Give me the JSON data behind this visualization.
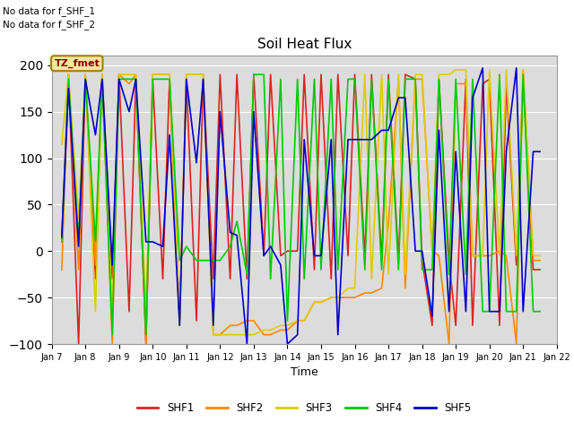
{
  "title": "Soil Heat Flux",
  "ylabel": "Soil Heat Flux",
  "xlabel": "Time",
  "ylim": [
    -100,
    210
  ],
  "yticks": [
    -100,
    -50,
    0,
    50,
    100,
    150,
    200
  ],
  "background_color": "#dcdcdc",
  "note1": "No data for f_SHF_1",
  "note2": "No data for f_SHF_2",
  "tz_label": "TZ_fmet",
  "series": {
    "SHF1": {
      "color": "#dd2222",
      "x": [
        7.3,
        7.5,
        7.8,
        8.0,
        8.3,
        8.5,
        8.8,
        9.0,
        9.3,
        9.5,
        9.8,
        10.0,
        10.3,
        10.5,
        10.8,
        11.0,
        11.3,
        11.5,
        11.8,
        12.0,
        12.3,
        12.5,
        12.8,
        13.0,
        13.3,
        13.5,
        13.8,
        14.0,
        14.3,
        14.5,
        14.8,
        15.0,
        15.3,
        15.5,
        15.8,
        16.0,
        16.3,
        16.5,
        16.8,
        17.0,
        17.3,
        17.5,
        17.8,
        18.0,
        18.3,
        18.5,
        18.8,
        19.0,
        19.3,
        19.5,
        19.8,
        20.0,
        20.3,
        20.5,
        20.8,
        21.0,
        21.3,
        21.5
      ],
      "y": [
        15,
        190,
        -100,
        190,
        -30,
        190,
        -30,
        190,
        -65,
        185,
        -100,
        185,
        -30,
        185,
        -75,
        185,
        -75,
        185,
        -30,
        190,
        -30,
        190,
        -30,
        190,
        -5,
        190,
        -5,
        0,
        0,
        190,
        -20,
        190,
        -30,
        190,
        -5,
        190,
        -5,
        190,
        -10,
        190,
        -10,
        190,
        185,
        -10,
        -80,
        185,
        -10,
        -80,
        185,
        -80,
        180,
        185,
        -80,
        180,
        -15,
        185,
        -20,
        -20
      ]
    },
    "SHF2": {
      "color": "#ff8800",
      "x": [
        7.3,
        7.5,
        7.8,
        8.0,
        8.3,
        8.5,
        8.8,
        9.0,
        9.3,
        9.5,
        9.8,
        10.0,
        10.3,
        10.5,
        10.8,
        11.0,
        11.3,
        11.5,
        11.8,
        12.0,
        12.3,
        12.5,
        12.8,
        13.0,
        13.3,
        13.5,
        13.8,
        14.0,
        14.3,
        14.5,
        14.8,
        15.0,
        15.3,
        15.5,
        15.8,
        16.0,
        16.3,
        16.5,
        16.8,
        17.0,
        17.3,
        17.5,
        17.8,
        18.0,
        18.3,
        18.5,
        18.8,
        19.0,
        19.3,
        19.5,
        19.8,
        20.0,
        20.3,
        20.5,
        20.8,
        21.0,
        21.3,
        21.5
      ],
      "y": [
        -20,
        190,
        -20,
        190,
        -15,
        190,
        -100,
        190,
        180,
        190,
        -100,
        190,
        190,
        190,
        -80,
        190,
        190,
        190,
        -90,
        -90,
        -80,
        -80,
        -75,
        -75,
        -90,
        -90,
        -85,
        -85,
        -75,
        -75,
        -55,
        -55,
        -50,
        -50,
        -50,
        -50,
        -45,
        -45,
        -40,
        30,
        185,
        -40,
        185,
        185,
        0,
        -5,
        -100,
        180,
        180,
        -5,
        -5,
        -5,
        0,
        -5,
        -100,
        195,
        -10,
        -10
      ]
    },
    "SHF3": {
      "color": "#ddcc00",
      "x": [
        7.3,
        7.5,
        7.8,
        8.0,
        8.3,
        8.5,
        8.8,
        9.0,
        9.3,
        9.5,
        9.8,
        10.0,
        10.3,
        10.5,
        10.8,
        11.0,
        11.3,
        11.5,
        11.8,
        12.0,
        12.3,
        12.5,
        12.8,
        13.0,
        13.3,
        13.5,
        13.8,
        14.0,
        14.3,
        14.5,
        14.8,
        15.0,
        15.3,
        15.5,
        15.8,
        16.0,
        16.3,
        16.5,
        16.8,
        17.0,
        17.3,
        17.5,
        17.8,
        18.0,
        18.3,
        18.5,
        18.8,
        19.0,
        19.3,
        19.5,
        19.8,
        20.0,
        20.3,
        20.5,
        20.8,
        21.0,
        21.3,
        21.5
      ],
      "y": [
        115,
        190,
        35,
        190,
        -65,
        190,
        -65,
        190,
        190,
        190,
        -65,
        190,
        190,
        190,
        -75,
        190,
        190,
        190,
        -90,
        -90,
        -90,
        -90,
        -90,
        -90,
        -85,
        -85,
        -80,
        -80,
        -75,
        -75,
        -55,
        -55,
        -50,
        -50,
        -40,
        -40,
        190,
        -30,
        190,
        -25,
        190,
        -25,
        190,
        190,
        0,
        190,
        190,
        195,
        195,
        -5,
        -5,
        195,
        -5,
        195,
        -5,
        195,
        -5,
        -5
      ]
    },
    "SHF4": {
      "color": "#00cc00",
      "x": [
        7.3,
        7.5,
        7.8,
        8.0,
        8.3,
        8.5,
        8.8,
        9.0,
        9.3,
        9.5,
        9.8,
        10.0,
        10.3,
        10.5,
        10.8,
        11.0,
        11.3,
        11.5,
        11.8,
        12.0,
        12.3,
        12.5,
        12.8,
        13.0,
        13.3,
        13.5,
        13.8,
        14.0,
        14.3,
        14.5,
        14.8,
        15.0,
        15.3,
        15.5,
        15.8,
        16.0,
        16.3,
        16.5,
        16.8,
        17.0,
        17.3,
        17.5,
        17.8,
        18.0,
        18.3,
        18.5,
        18.8,
        19.0,
        19.3,
        19.5,
        19.8,
        20.0,
        20.3,
        20.5,
        20.8,
        21.0,
        21.3,
        21.5
      ],
      "y": [
        10,
        185,
        10,
        185,
        10,
        185,
        -90,
        185,
        185,
        185,
        -90,
        185,
        185,
        185,
        -10,
        5,
        -10,
        -10,
        -10,
        -10,
        5,
        32,
        -25,
        190,
        190,
        -30,
        185,
        -75,
        185,
        -30,
        185,
        -20,
        185,
        -20,
        185,
        185,
        -20,
        185,
        -20,
        185,
        -20,
        185,
        185,
        -20,
        -20,
        185,
        -25,
        185,
        -25,
        185,
        -65,
        -65,
        190,
        -65,
        -65,
        190,
        -65,
        -65
      ]
    },
    "SHF5": {
      "color": "#0000cc",
      "x": [
        7.3,
        7.5,
        7.8,
        8.0,
        8.3,
        8.5,
        8.8,
        9.0,
        9.3,
        9.5,
        9.8,
        10.0,
        10.3,
        10.5,
        10.8,
        11.0,
        11.3,
        11.5,
        11.8,
        12.0,
        12.3,
        12.5,
        12.8,
        13.0,
        13.3,
        13.5,
        13.8,
        14.0,
        14.3,
        14.5,
        14.8,
        15.0,
        15.3,
        15.5,
        15.8,
        16.0,
        16.3,
        16.5,
        16.8,
        17.0,
        17.3,
        17.5,
        17.8,
        18.0,
        18.3,
        18.5,
        18.8,
        19.0,
        19.3,
        19.5,
        19.8,
        20.0,
        20.3,
        20.5,
        20.8,
        21.0,
        21.3,
        21.5
      ],
      "y": [
        15,
        175,
        5,
        185,
        125,
        185,
        -15,
        185,
        150,
        185,
        10,
        10,
        5,
        125,
        -80,
        185,
        95,
        185,
        -80,
        150,
        20,
        17,
        -100,
        150,
        -5,
        5,
        -15,
        -100,
        -90,
        120,
        -5,
        -5,
        120,
        -90,
        120,
        120,
        120,
        120,
        130,
        130,
        165,
        165,
        0,
        0,
        -70,
        130,
        -65,
        107,
        -65,
        165,
        197,
        -65,
        -65,
        107,
        197,
        -65,
        107,
        107
      ]
    }
  },
  "xtick_labels": [
    "Jan 7",
    "Jan 8",
    "Jan 9",
    "Jan 10",
    "Jan 11",
    "Jan 12",
    "Jan 13",
    "Jan 14",
    "Jan 15",
    "Jan 16",
    "Jan 17",
    "Jan 18",
    "Jan 19",
    "Jan 20",
    "Jan 21",
    "Jan 22"
  ],
  "xtick_positions": [
    7,
    8,
    9,
    10,
    11,
    12,
    13,
    14,
    15,
    16,
    17,
    18,
    19,
    20,
    21,
    22
  ],
  "legend_entries": [
    "SHF1",
    "SHF2",
    "SHF3",
    "SHF4",
    "SHF5"
  ],
  "legend_colors": [
    "#dd2222",
    "#ff8800",
    "#ddcc00",
    "#00cc00",
    "#0000cc"
  ]
}
